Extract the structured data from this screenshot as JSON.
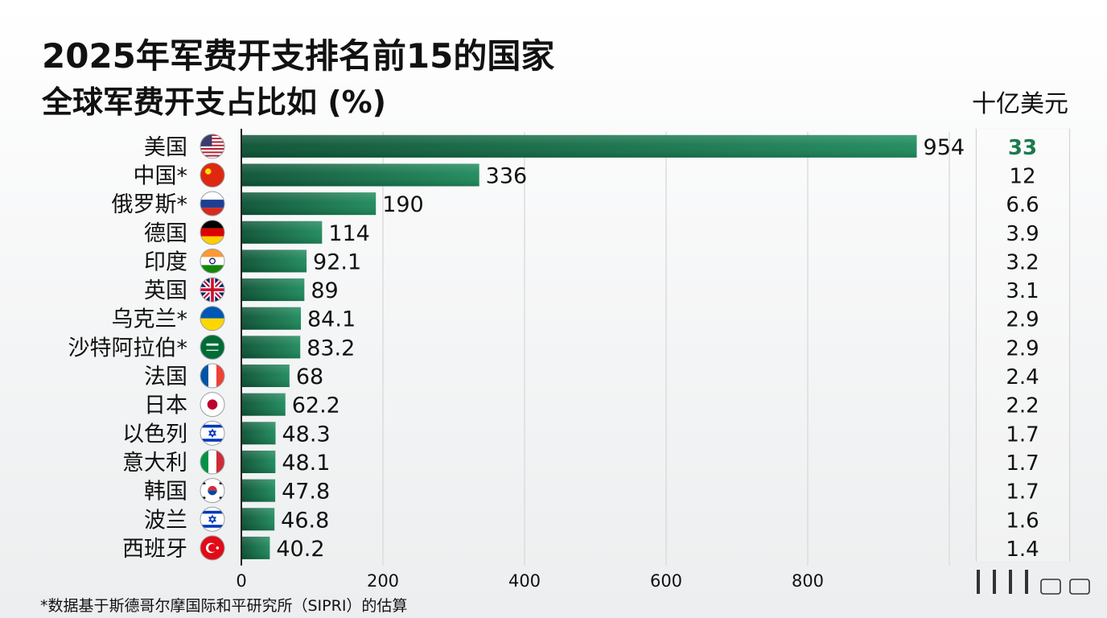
{
  "title": "2025年军费开支排名前15的国家",
  "subtitle": "全球军费开支占比如 (%)",
  "unit_label": "十亿美元",
  "footnote": "*数据基于斯德哥尔摩国际和平研究所（SIPRI）的估算",
  "colors": {
    "bar_dark": "#0e5f3e",
    "bar_light": "#1e8a5c",
    "highlight_text": "#1b7a4e",
    "grid": "#d9dcdc",
    "axis": "#222222"
  },
  "chart_data": {
    "type": "bar",
    "orientation": "horizontal",
    "categories": [
      "美国",
      "中国*",
      "俄罗斯*",
      "德国",
      "印度",
      "英国",
      "乌克兰*",
      "沙特阿拉伯*",
      "法国",
      "日本",
      "以色列",
      "意大利",
      "韩国",
      "波兰",
      "西班牙"
    ],
    "flags": [
      "us-flag-icon",
      "china-flag-icon",
      "russia-flag-icon",
      "germany-flag-icon",
      "india-flag-icon",
      "uk-flag-icon",
      "ukraine-flag-icon",
      "saudi-arabia-flag-icon",
      "france-flag-icon",
      "japan-flag-icon",
      "israel-flag-icon",
      "italy-flag-icon",
      "south-korea-flag-icon",
      "israel-flag-icon",
      "turkey-flag-icon"
    ],
    "values": [
      954,
      336,
      190,
      114,
      92.1,
      89,
      84.1,
      83.2,
      68,
      62.2,
      48.3,
      48.1,
      47.8,
      46.8,
      40.2
    ],
    "value_labels": [
      "954",
      "336",
      "190",
      "114",
      "92.1",
      "89",
      "84.1",
      "83.2",
      "68",
      "62.2",
      "48.3",
      "48.1",
      "47.8",
      "46.8",
      "40.2"
    ],
    "shares": [
      "33",
      "12",
      "6.6",
      "3.9",
      "3.2",
      "3.1",
      "2.9",
      "2.9",
      "2.4",
      "2.2",
      "1.7",
      "1.7",
      "1.7",
      "1.6",
      "1.4"
    ],
    "xlim": [
      0,
      1000
    ],
    "xticks": [
      0,
      200,
      400,
      600,
      800
    ],
    "xtick_labels": [
      "0",
      "200",
      "400",
      "600",
      "800"
    ],
    "grid": true
  }
}
